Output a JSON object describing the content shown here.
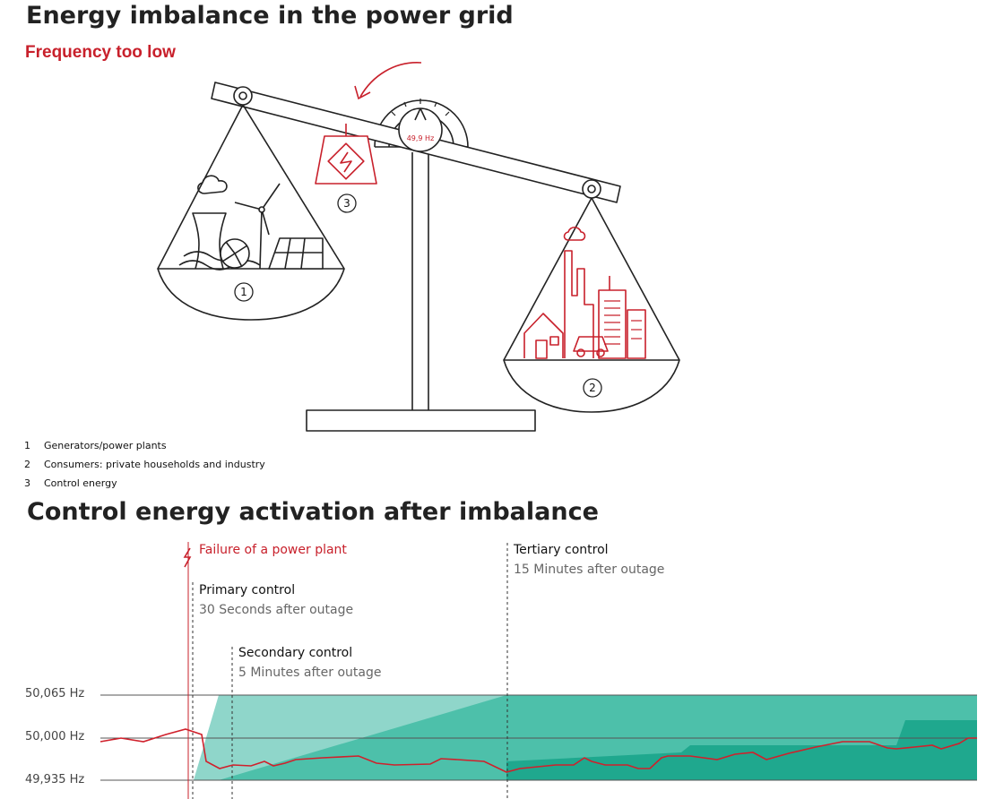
{
  "top": {
    "title": "Energy imbalance in the power grid",
    "subtitle": "Frequency too low",
    "gauge_label": "49,9 Hz",
    "markers": [
      "1",
      "2",
      "3"
    ],
    "legend": [
      {
        "num": "1",
        "label": "Generators/power plants"
      },
      {
        "num": "2",
        "label": "Consumers: private households and industry"
      },
      {
        "num": "3",
        "label": "Control energy"
      }
    ],
    "colors": {
      "accent": "#c8202b",
      "line": "#222222"
    }
  },
  "bottom": {
    "title": "Control energy activation after imbalance",
    "events": {
      "failure": "Failure of a power plant",
      "primary": {
        "title": "Primary control",
        "sub": "30 Seconds after outage"
      },
      "secondary": {
        "title": "Secondary control",
        "sub": "5 Minutes after outage"
      },
      "tertiary": {
        "title": "Tertiary control",
        "sub": "15 Minutes after outage"
      }
    },
    "y_labels": [
      "50,065 Hz",
      "50,000 Hz",
      "49,935 Hz"
    ],
    "colors": {
      "primary": "#8fd6ca",
      "secondary": "#4dc0aa",
      "tertiary": "#1fa88e",
      "frequency": "#d0202b"
    }
  }
}
